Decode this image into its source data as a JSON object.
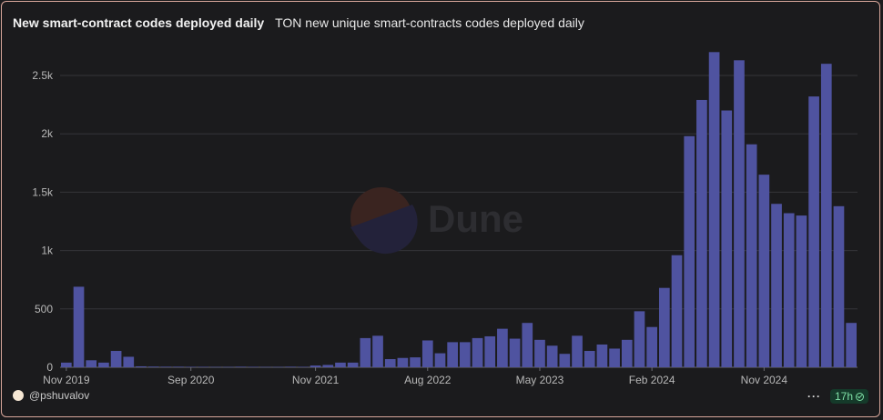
{
  "header": {
    "title": "New smart-contract codes deployed daily",
    "subtitle": "TON new unique smart-contracts codes deployed daily"
  },
  "footer": {
    "author": "@pshuvalov",
    "freshness": "17h",
    "menu_label": "···"
  },
  "watermark": {
    "text": "Dune"
  },
  "colors": {
    "bar": "#4f53a0",
    "grid": "#353539",
    "axis_text": "#b8b8b8"
  },
  "chart_data": {
    "type": "bar",
    "title": "New smart-contract codes deployed daily",
    "subtitle": "TON new unique smart-contracts codes deployed daily",
    "xlabel": "",
    "ylabel": "",
    "ylim": [
      0,
      2700
    ],
    "y_ticks": [
      0,
      500,
      1000,
      1500,
      2000,
      2500
    ],
    "y_tick_labels": [
      "0",
      "500",
      "1k",
      "1.5k",
      "2k",
      "2.5k"
    ],
    "x_tick_labels": [
      {
        "label": "Nov 2019",
        "index": 0
      },
      {
        "label": "Sep 2020",
        "index": 10
      },
      {
        "label": "Nov 2021",
        "index": 20
      },
      {
        "label": "Aug 2022",
        "index": 29
      },
      {
        "label": "May 2023",
        "index": 38
      },
      {
        "label": "Feb 2024",
        "index": 47
      },
      {
        "label": "Nov 2024",
        "index": 56
      }
    ],
    "grid": true,
    "legend": "none",
    "values": [
      40,
      690,
      60,
      40,
      140,
      90,
      8,
      6,
      5,
      5,
      4,
      4,
      3,
      3,
      5,
      4,
      3,
      3,
      5,
      4,
      15,
      20,
      40,
      40,
      250,
      270,
      70,
      80,
      85,
      230,
      120,
      215,
      215,
      250,
      265,
      330,
      245,
      380,
      235,
      185,
      115,
      270,
      140,
      195,
      160,
      235,
      480,
      345,
      680,
      960,
      1980,
      2290,
      2700,
      2200,
      2630,
      1910,
      1650,
      1400,
      1320,
      1300,
      2320,
      2600,
      1380,
      380
    ]
  }
}
